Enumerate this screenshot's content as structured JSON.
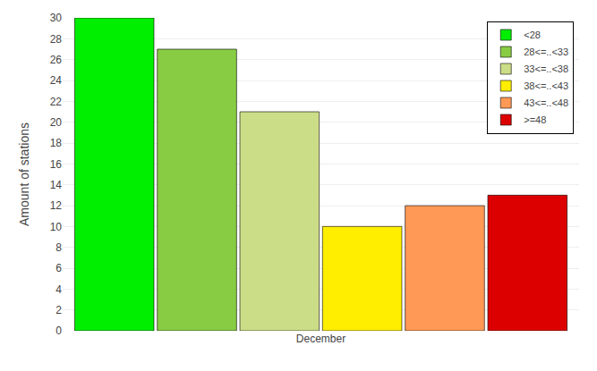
{
  "chart_data": {
    "type": "bar",
    "categories": [
      "December"
    ],
    "series": [
      {
        "name": "<28",
        "color": "#00ee00",
        "values": [
          30
        ]
      },
      {
        "name": "28<=..<33",
        "color": "#88cc44",
        "values": [
          27
        ]
      },
      {
        "name": "33<=..<38",
        "color": "#ccdd88",
        "values": [
          21
        ]
      },
      {
        "name": "38<=..<43",
        "color": "#ffee00",
        "values": [
          10
        ]
      },
      {
        "name": "43<=..<48",
        "color": "#ff9955",
        "values": [
          12
        ]
      },
      {
        "name": ">=48",
        "color": "#dd0000",
        "values": [
          13
        ]
      }
    ],
    "ylabel": "Amount of stations",
    "ylim": [
      0,
      30
    ],
    "yticks": [
      0,
      2,
      4,
      6,
      8,
      10,
      12,
      14,
      16,
      18,
      20,
      22,
      24,
      26,
      28,
      30
    ],
    "grid": true,
    "legend": "upper right"
  }
}
